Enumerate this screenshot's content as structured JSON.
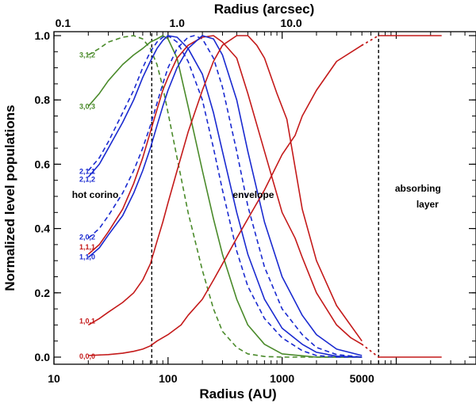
{
  "chart_data": {
    "type": "line",
    "xscale": "log",
    "xlim": [
      10,
      50000
    ],
    "ylim": [
      0.0,
      1.0
    ],
    "xlabel": "Radius (AU)",
    "ylabel": "Normalized level populations",
    "top_axis_label": "Radius (arcsec)",
    "x_ticks": [
      {
        "value": 10,
        "label": "10"
      },
      {
        "value": 100,
        "label": "100"
      },
      {
        "value": 1000,
        "label": "1000"
      },
      {
        "value": 5000,
        "label": "5000"
      }
    ],
    "top_ticks": [
      {
        "au": 12,
        "label": "0.1"
      },
      {
        "au": 120,
        "label": "1.0"
      },
      {
        "au": 1200,
        "label": "10.0"
      }
    ],
    "y_ticks": [
      {
        "value": 0.0,
        "label": "0.0"
      },
      {
        "value": 0.2,
        "label": "0.2"
      },
      {
        "value": 0.4,
        "label": "0.4"
      },
      {
        "value": 0.6,
        "label": "0.6"
      },
      {
        "value": 0.8,
        "label": "0.8"
      },
      {
        "value": 1.0,
        "label": "1.0"
      }
    ],
    "boundaries": [
      {
        "name": "hot-corino-boundary",
        "x": 72
      },
      {
        "name": "absorbing-layer-boundary",
        "x": 7000
      }
    ],
    "regions": [
      {
        "name": "hot-corino",
        "lines": [
          "hot corino"
        ],
        "x": 23,
        "y": 0.505
      },
      {
        "name": "envelope",
        "lines": [
          "envelope"
        ],
        "x": 560,
        "y": 0.505
      },
      {
        "name": "absorbing-layer",
        "lines": [
          "absorbing",
          "layer"
        ],
        "x": 15500,
        "y": 0.525
      }
    ],
    "series": [
      {
        "name": "3,1,2",
        "color": "#4a8a2a",
        "dash": true,
        "label_y": 0.94,
        "points": [
          [
            20,
            0.94
          ],
          [
            25,
            0.96
          ],
          [
            30,
            0.98
          ],
          [
            40,
            0.995
          ],
          [
            50,
            1.0
          ],
          [
            60,
            0.99
          ],
          [
            70,
            0.96
          ],
          [
            80,
            0.91
          ],
          [
            90,
            0.84
          ],
          [
            100,
            0.76
          ],
          [
            120,
            0.62
          ],
          [
            150,
            0.45
          ],
          [
            200,
            0.27
          ],
          [
            250,
            0.15
          ],
          [
            300,
            0.08
          ],
          [
            400,
            0.03
          ],
          [
            500,
            0.01
          ],
          [
            700,
            0.002
          ],
          [
            1000,
            0.0
          ],
          [
            2000,
            0.0
          ],
          [
            5000,
            0.0
          ]
        ]
      },
      {
        "name": "3,0,3",
        "color": "#4a8a2a",
        "dash": false,
        "label_y": 0.78,
        "points": [
          [
            20,
            0.78
          ],
          [
            25,
            0.82
          ],
          [
            30,
            0.86
          ],
          [
            40,
            0.91
          ],
          [
            50,
            0.94
          ],
          [
            60,
            0.96
          ],
          [
            70,
            0.98
          ],
          [
            80,
            0.99
          ],
          [
            90,
            1.0
          ],
          [
            100,
            0.99
          ],
          [
            120,
            0.93
          ],
          [
            150,
            0.78
          ],
          [
            200,
            0.58
          ],
          [
            250,
            0.43
          ],
          [
            300,
            0.32
          ],
          [
            400,
            0.18
          ],
          [
            500,
            0.1
          ],
          [
            700,
            0.04
          ],
          [
            1000,
            0.01
          ],
          [
            2000,
            0.0
          ],
          [
            5000,
            0.0
          ]
        ]
      },
      {
        "name": "2,1,1",
        "color": "#1a2ad0",
        "dash": true,
        "label_y": 0.578,
        "points": [
          [
            20,
            0.58
          ],
          [
            25,
            0.62
          ],
          [
            30,
            0.67
          ],
          [
            40,
            0.76
          ],
          [
            50,
            0.83
          ],
          [
            60,
            0.9
          ],
          [
            70,
            0.95
          ],
          [
            80,
            0.98
          ],
          [
            90,
            0.995
          ],
          [
            100,
            1.0
          ],
          [
            120,
            0.98
          ],
          [
            150,
            0.92
          ],
          [
            200,
            0.8
          ],
          [
            250,
            0.65
          ],
          [
            300,
            0.52
          ],
          [
            400,
            0.33
          ],
          [
            500,
            0.22
          ],
          [
            700,
            0.12
          ],
          [
            1000,
            0.06
          ],
          [
            1500,
            0.02
          ],
          [
            2000,
            0.005
          ],
          [
            3000,
            0.0
          ],
          [
            5000,
            0.0
          ]
        ]
      },
      {
        "name": "2,1,2",
        "color": "#1a2ad0",
        "dash": false,
        "label_y": 0.553,
        "points": [
          [
            20,
            0.56
          ],
          [
            25,
            0.6
          ],
          [
            30,
            0.65
          ],
          [
            40,
            0.73
          ],
          [
            50,
            0.8
          ],
          [
            60,
            0.87
          ],
          [
            70,
            0.92
          ],
          [
            80,
            0.96
          ],
          [
            90,
            0.985
          ],
          [
            100,
            1.0
          ],
          [
            120,
            0.995
          ],
          [
            150,
            0.96
          ],
          [
            200,
            0.88
          ],
          [
            250,
            0.76
          ],
          [
            300,
            0.64
          ],
          [
            400,
            0.45
          ],
          [
            500,
            0.32
          ],
          [
            700,
            0.18
          ],
          [
            1000,
            0.09
          ],
          [
            1500,
            0.04
          ],
          [
            2000,
            0.015
          ],
          [
            3000,
            0.003
          ],
          [
            5000,
            0.0
          ]
        ]
      },
      {
        "name": "2,0,2",
        "color": "#1a2ad0",
        "dash": true,
        "label_y": 0.373,
        "points": [
          [
            20,
            0.37
          ],
          [
            25,
            0.4
          ],
          [
            30,
            0.44
          ],
          [
            40,
            0.51
          ],
          [
            50,
            0.58
          ],
          [
            60,
            0.65
          ],
          [
            70,
            0.72
          ],
          [
            80,
            0.79
          ],
          [
            90,
            0.85
          ],
          [
            100,
            0.9
          ],
          [
            120,
            0.96
          ],
          [
            150,
            0.995
          ],
          [
            170,
            1.0
          ],
          [
            200,
            0.99
          ],
          [
            250,
            0.93
          ],
          [
            300,
            0.84
          ],
          [
            400,
            0.64
          ],
          [
            500,
            0.47
          ],
          [
            700,
            0.28
          ],
          [
            1000,
            0.15
          ],
          [
            1500,
            0.07
          ],
          [
            2000,
            0.03
          ],
          [
            3000,
            0.008
          ],
          [
            5000,
            0.0
          ]
        ]
      },
      {
        "name": "1,1,1",
        "color": "#c41a1a",
        "dash": false,
        "label_y": 0.342,
        "points": [
          [
            20,
            0.32
          ],
          [
            25,
            0.35
          ],
          [
            30,
            0.39
          ],
          [
            40,
            0.46
          ],
          [
            50,
            0.54
          ],
          [
            60,
            0.62
          ],
          [
            70,
            0.7
          ],
          [
            80,
            0.77
          ],
          [
            90,
            0.83
          ],
          [
            100,
            0.87
          ],
          [
            120,
            0.93
          ],
          [
            150,
            0.97
          ],
          [
            200,
            0.995
          ],
          [
            250,
            1.0
          ],
          [
            300,
            0.98
          ],
          [
            400,
            0.93
          ],
          [
            500,
            0.82
          ],
          [
            700,
            0.64
          ],
          [
            1000,
            0.45
          ],
          [
            1300,
            0.37
          ],
          [
            1500,
            0.31
          ],
          [
            2000,
            0.2
          ],
          [
            3000,
            0.1
          ],
          [
            4000,
            0.06
          ],
          [
            5000,
            0.04
          ]
        ]
      },
      {
        "name": "1,1,0",
        "color": "#1a2ad0",
        "dash": false,
        "label_y": 0.312,
        "points": [
          [
            20,
            0.31
          ],
          [
            25,
            0.34
          ],
          [
            30,
            0.38
          ],
          [
            40,
            0.44
          ],
          [
            50,
            0.51
          ],
          [
            60,
            0.58
          ],
          [
            70,
            0.65
          ],
          [
            80,
            0.72
          ],
          [
            90,
            0.78
          ],
          [
            100,
            0.83
          ],
          [
            120,
            0.9
          ],
          [
            150,
            0.96
          ],
          [
            200,
            1.0
          ],
          [
            250,
            0.99
          ],
          [
            300,
            0.94
          ],
          [
            400,
            0.8
          ],
          [
            500,
            0.64
          ],
          [
            700,
            0.42
          ],
          [
            1000,
            0.25
          ],
          [
            1500,
            0.13
          ],
          [
            2000,
            0.07
          ],
          [
            3000,
            0.025
          ],
          [
            5000,
            0.005
          ]
        ]
      },
      {
        "name": "1,0,1",
        "color": "#c41a1a",
        "dash": false,
        "label_y": 0.112,
        "points": [
          [
            20,
            0.1
          ],
          [
            25,
            0.12
          ],
          [
            30,
            0.14
          ],
          [
            40,
            0.17
          ],
          [
            50,
            0.2
          ],
          [
            60,
            0.24
          ],
          [
            70,
            0.29
          ],
          [
            80,
            0.36
          ],
          [
            90,
            0.42
          ],
          [
            100,
            0.48
          ],
          [
            120,
            0.58
          ],
          [
            150,
            0.7
          ],
          [
            200,
            0.83
          ],
          [
            250,
            0.92
          ],
          [
            300,
            0.97
          ],
          [
            400,
            1.0
          ],
          [
            500,
            1.0
          ],
          [
            600,
            0.97
          ],
          [
            700,
            0.93
          ],
          [
            900,
            0.82
          ],
          [
            1100,
            0.74
          ],
          [
            1300,
            0.59
          ],
          [
            1500,
            0.46
          ],
          [
            2000,
            0.3
          ],
          [
            3000,
            0.16
          ],
          [
            5000,
            0.05
          ]
        ]
      },
      {
        "name": "0,0,0",
        "color": "#c41a1a",
        "dash": false,
        "label_y": 0.003,
        "points": [
          [
            20,
            0.005
          ],
          [
            30,
            0.008
          ],
          [
            40,
            0.012
          ],
          [
            50,
            0.018
          ],
          [
            60,
            0.025
          ],
          [
            70,
            0.035
          ],
          [
            80,
            0.05
          ],
          [
            100,
            0.07
          ],
          [
            130,
            0.1
          ],
          [
            150,
            0.13
          ],
          [
            200,
            0.18
          ],
          [
            250,
            0.24
          ],
          [
            300,
            0.29
          ],
          [
            400,
            0.37
          ],
          [
            500,
            0.43
          ],
          [
            700,
            0.52
          ],
          [
            1000,
            0.63
          ],
          [
            1300,
            0.69
          ],
          [
            1500,
            0.75
          ],
          [
            2000,
            0.83
          ],
          [
            3000,
            0.92
          ],
          [
            5000,
            0.97
          ]
        ]
      }
    ],
    "absorbing_layer_extension": {
      "upper": {
        "color": "#c41a1a",
        "points": [
          [
            7000,
            1.0
          ],
          [
            10000,
            1.0
          ],
          [
            18000,
            1.0
          ],
          [
            25000,
            1.0
          ]
        ]
      },
      "lower": {
        "color": "#c41a1a",
        "points": [
          [
            7000,
            0.0
          ],
          [
            10000,
            0.0
          ],
          [
            18000,
            0.0
          ],
          [
            25000,
            0.0
          ]
        ]
      }
    }
  }
}
